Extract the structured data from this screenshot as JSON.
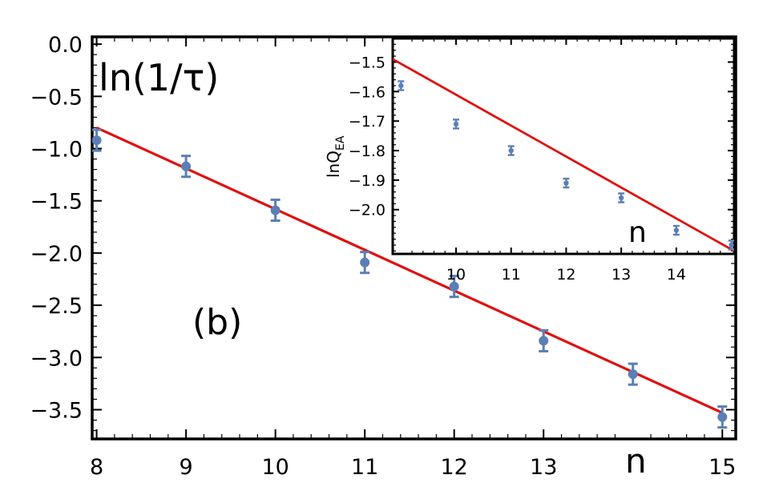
{
  "chart_data": [
    {
      "type": "scatter",
      "panel": "main",
      "xlabel": "n",
      "ylabel": "ln(1/τ)",
      "annotation": "(b)",
      "xlim": [
        7.95,
        15.15
      ],
      "ylim": [
        -3.78,
        0.07
      ],
      "xticks": [
        8,
        9,
        10,
        11,
        12,
        13,
        15
      ],
      "yticks": [
        0.0,
        -0.5,
        -1.0,
        -1.5,
        -2.0,
        -2.5,
        -3.0,
        -3.5
      ],
      "ytick_labels": [
        "0.0",
        "−0.5",
        "−1.0",
        "−1.5",
        "−2.0",
        "−2.5",
        "−3.0",
        "−3.5"
      ],
      "points": {
        "x": [
          8,
          9,
          10,
          11,
          12,
          13,
          14,
          15
        ],
        "y": [
          -0.92,
          -1.17,
          -1.59,
          -2.09,
          -2.32,
          -2.84,
          -3.16,
          -3.57
        ],
        "err": [
          0.1,
          0.1,
          0.1,
          0.1,
          0.1,
          0.1,
          0.1,
          0.1
        ]
      },
      "fit": {
        "x": [
          8,
          15
        ],
        "y": [
          -0.8,
          -3.53
        ]
      },
      "grid": false,
      "colors": {
        "points": "#5b7fb4",
        "fit": "#e01010",
        "frame": "#000000"
      }
    },
    {
      "type": "scatter",
      "panel": "inset",
      "xlabel": "n",
      "ylabel": "lnQ",
      "ylabel_sub": "EA",
      "xlim": [
        8.85,
        15.05
      ],
      "ylim": [
        -2.15,
        -1.42
      ],
      "xticks": [
        10,
        11,
        12,
        13,
        14
      ],
      "yticks": [
        -1.5,
        -1.6,
        -1.7,
        -1.8,
        -1.9,
        -2.0
      ],
      "ytick_labels": [
        "−1.5",
        "−1.6",
        "−1.7",
        "−1.8",
        "−1.9",
        "−2.0"
      ],
      "points": {
        "x": [
          9,
          10,
          11,
          12,
          13,
          14,
          15
        ],
        "y": [
          -1.58,
          -1.71,
          -1.8,
          -1.91,
          -1.96,
          -2.07,
          -2.12
        ],
        "err": [
          0.015,
          0.015,
          0.015,
          0.015,
          0.015,
          0.015,
          0.015
        ]
      },
      "fit": {
        "x": [
          8.85,
          15.05
        ],
        "y": [
          -1.49,
          -2.14
        ]
      },
      "grid": false,
      "colors": {
        "points": "#5b7fb4",
        "fit": "#e01010",
        "frame": "#000000"
      }
    }
  ]
}
